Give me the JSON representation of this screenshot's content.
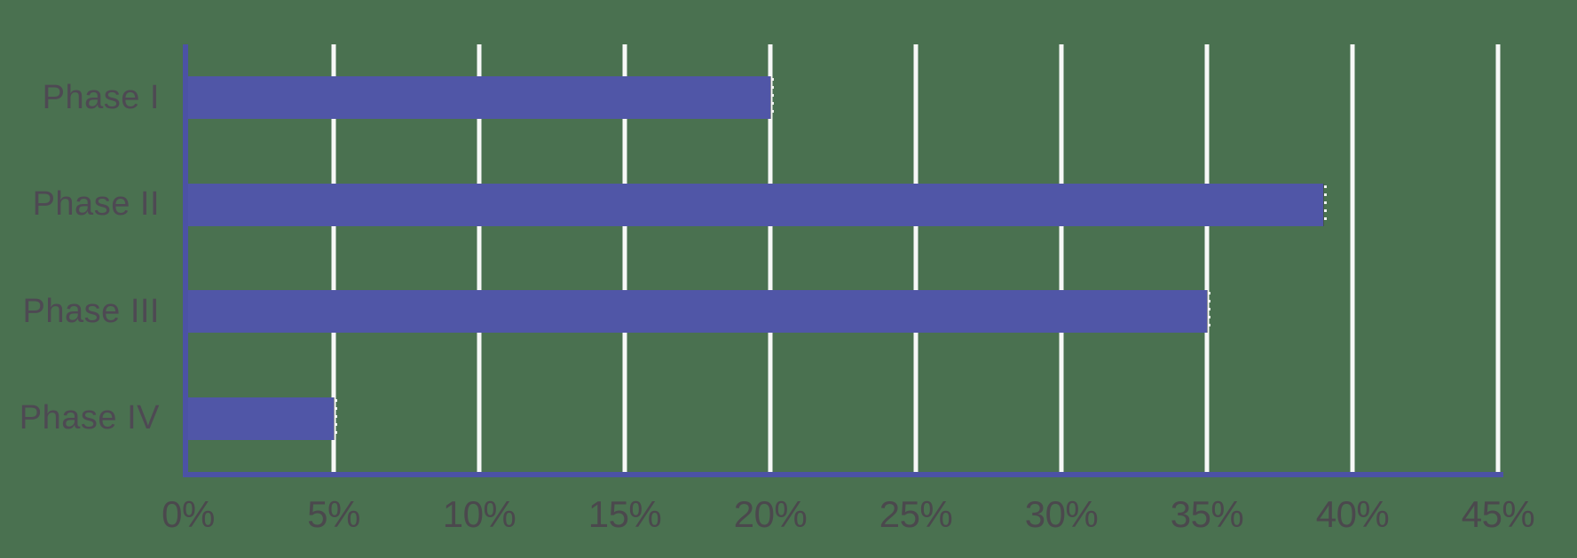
{
  "chart_data": {
    "type": "bar",
    "orientation": "horizontal",
    "title": "",
    "xlabel": "",
    "ylabel": "",
    "categories": [
      "Phase I",
      "Phase II",
      "Phase III",
      "Phase IV"
    ],
    "values": [
      20,
      39,
      35,
      5
    ],
    "value_unit": "%",
    "xlim": [
      0,
      45
    ],
    "x_tick_values": [
      0,
      5,
      10,
      15,
      20,
      25,
      30,
      35,
      40,
      45
    ],
    "x_tick_labels": [
      "0%",
      "5%",
      "10%",
      "15%",
      "20%",
      "25%",
      "30%",
      "35%",
      "40%",
      "45%"
    ],
    "grid": "vertical gridlines at each 5% tick",
    "legend_position": "none"
  },
  "colors": {
    "background": "#4a7150",
    "bar": "#5056a7",
    "axis_line": "#4c52a5",
    "gridline": "#f7f8f7",
    "tick_label": "#4b484d",
    "category_label": "#4e4953"
  }
}
